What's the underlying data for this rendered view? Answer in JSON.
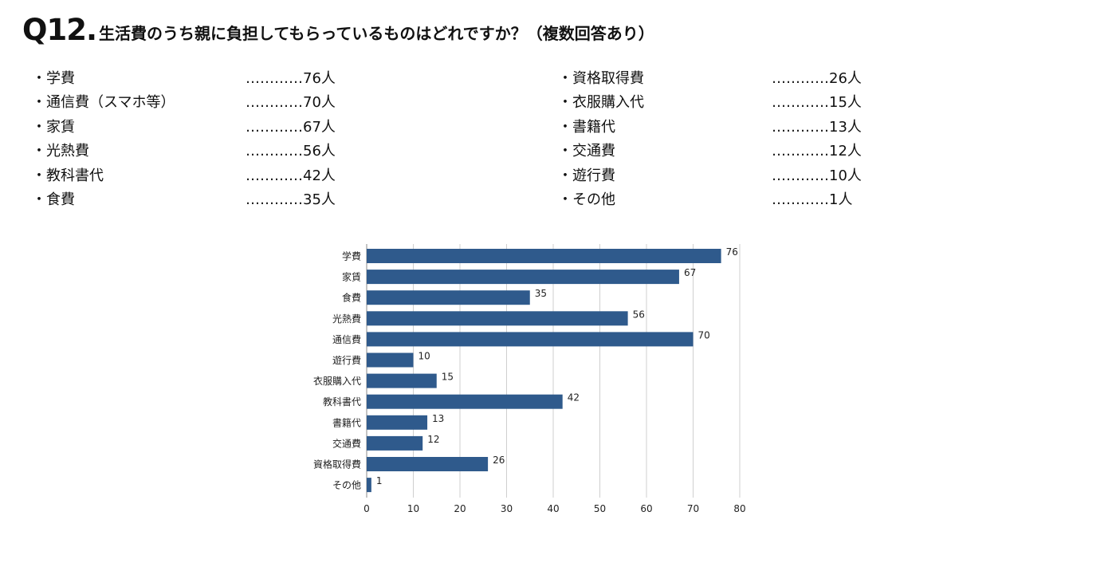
{
  "question": {
    "number": "Q12.",
    "text": "生活費のうち親に負担してもらっているものはどれですか？（複数回答あり）"
  },
  "list_left": [
    {
      "item": "・学費",
      "count": "…………76人"
    },
    {
      "item": "・通信費（スマホ等）",
      "count": "…………70人"
    },
    {
      "item": "・家賃",
      "count": "…………67人"
    },
    {
      "item": "・光熱費",
      "count": "…………56人"
    },
    {
      "item": "・教科書代",
      "count": "…………42人"
    },
    {
      "item": "・食費",
      "count": "…………35人"
    }
  ],
  "list_right": [
    {
      "item": "・資格取得費",
      "count": "…………26人"
    },
    {
      "item": "・衣服購入代",
      "count": "…………15人"
    },
    {
      "item": "・書籍代",
      "count": "…………13人"
    },
    {
      "item": "・交通費",
      "count": "…………12人"
    },
    {
      "item": "・遊行費",
      "count": "…………10人"
    },
    {
      "item": "・その他",
      "count": "…………1人"
    }
  ],
  "chart_data": {
    "type": "bar",
    "orientation": "horizontal",
    "categories": [
      "学費",
      "家賃",
      "食費",
      "光熱費",
      "通信費",
      "遊行費",
      "衣服購入代",
      "教科書代",
      "書籍代",
      "交通費",
      "資格取得費",
      "その他"
    ],
    "values": [
      76,
      67,
      35,
      56,
      70,
      10,
      15,
      42,
      13,
      12,
      26,
      1
    ],
    "x_ticks": [
      0,
      10,
      20,
      30,
      40,
      50,
      60,
      70,
      80
    ],
    "xlim": [
      0,
      80
    ],
    "grid": true,
    "data_labels": true,
    "bar_color": "#2f5a8c",
    "grid_color": "#cfcfcf"
  }
}
